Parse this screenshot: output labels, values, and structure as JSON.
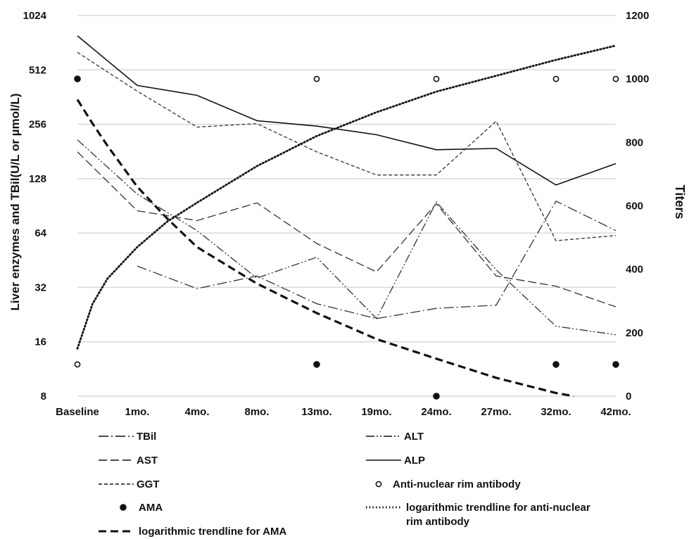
{
  "chart_data": {
    "type": "line",
    "title": "",
    "ylabel_left": "Liver enzymes and TBil(U/L or µmol/L)",
    "ylabel_right": "Titers",
    "y_left_scale": "log2",
    "y_left_ticks": [
      8,
      16,
      32,
      64,
      128,
      256,
      512,
      1024
    ],
    "y_left_tick_labels": [
      "8",
      "16",
      "32",
      "64",
      "128",
      "256",
      "512",
      "1024"
    ],
    "y_right_ticks": [
      0,
      200,
      400,
      600,
      800,
      1000,
      1200
    ],
    "y_right_tick_labels": [
      "0",
      "200",
      "400",
      "600",
      "800",
      "1000",
      "1200"
    ],
    "categories": [
      "Baseline",
      "1mo.",
      "4mo.",
      "8mo.",
      "13mo.",
      "19mo.",
      "24mo.",
      "27mo.",
      "32mo.",
      "42mo."
    ],
    "grid": true,
    "series": [
      {
        "name": "TBil",
        "axis": "left",
        "style": "dashdot",
        "values": [
          null,
          42,
          31.5,
          37,
          26,
          21.5,
          24.5,
          25.5,
          96,
          66
        ]
      },
      {
        "name": "ALT",
        "axis": "left",
        "style": "dashdotdot",
        "values": [
          210,
          105,
          66,
          36,
          47,
          21.5,
          95,
          40,
          19.5,
          17.5
        ]
      },
      {
        "name": "AST",
        "axis": "left",
        "style": "dashed",
        "values": [
          180,
          85,
          75,
          94,
          56,
          39,
          93,
          37,
          32.5,
          25
        ]
      },
      {
        "name": "ALP",
        "axis": "left",
        "style": "solid",
        "values": [
          790,
          420,
          370,
          268,
          250,
          224,
          185,
          188,
          118,
          155
        ]
      },
      {
        "name": "GGT",
        "axis": "left",
        "style": "shortdash",
        "values": [
          640,
          390,
          247,
          258,
          180,
          134,
          134,
          266,
          58,
          62
        ]
      },
      {
        "name": "Anti-nuclear rim antibody",
        "axis": "right",
        "style": "open-circle",
        "values": [
          100,
          null,
          null,
          null,
          1000,
          null,
          1000,
          null,
          1000,
          1000
        ]
      },
      {
        "name": "AMA",
        "axis": "right",
        "style": "filled-circle",
        "values": [
          1000,
          null,
          null,
          null,
          100,
          null,
          0,
          null,
          100,
          100
        ]
      }
    ],
    "trendlines": [
      {
        "name": "logarithmic trendline for AMA",
        "axis": "right",
        "style": "thick-dashed",
        "x_start": 0,
        "x_end": 8.3,
        "points_x": [
          0,
          0.25,
          0.5,
          1,
          1.5,
          2,
          3,
          4,
          5,
          6,
          7,
          8,
          8.3
        ],
        "points_y": [
          935,
          860,
          790,
          660,
          560,
          470,
          355,
          262,
          180,
          118,
          58,
          10,
          0
        ]
      },
      {
        "name": "logarithmic trendline for anti-nuclear rim antibody",
        "axis": "right",
        "style": "dotted",
        "x_start": 0,
        "x_end": 9,
        "points_x": [
          0,
          0.25,
          0.5,
          1,
          1.5,
          2,
          3,
          4,
          5,
          6,
          7,
          8,
          9
        ],
        "points_y": [
          150,
          290,
          370,
          470,
          550,
          610,
          725,
          820,
          895,
          960,
          1010,
          1060,
          1105
        ]
      }
    ],
    "legend": {
      "placement": "bottom",
      "items": [
        {
          "label": "TBil",
          "style": "dashdot"
        },
        {
          "label": "ALT",
          "style": "dashdotdot"
        },
        {
          "label": "AST",
          "style": "dashed"
        },
        {
          "label": "ALP",
          "style": "solid"
        },
        {
          "label": "GGT",
          "style": "shortdash"
        },
        {
          "label": "Anti-nuclear rim antibody",
          "style": "open-circle"
        },
        {
          "label": "AMA",
          "style": "filled-circle"
        },
        {
          "label": "logarithmic trendline for anti-nuclear rim antibody",
          "style": "dotted"
        },
        {
          "label": "logarithmic trendline for AMA",
          "style": "thick-dashed"
        }
      ]
    }
  }
}
